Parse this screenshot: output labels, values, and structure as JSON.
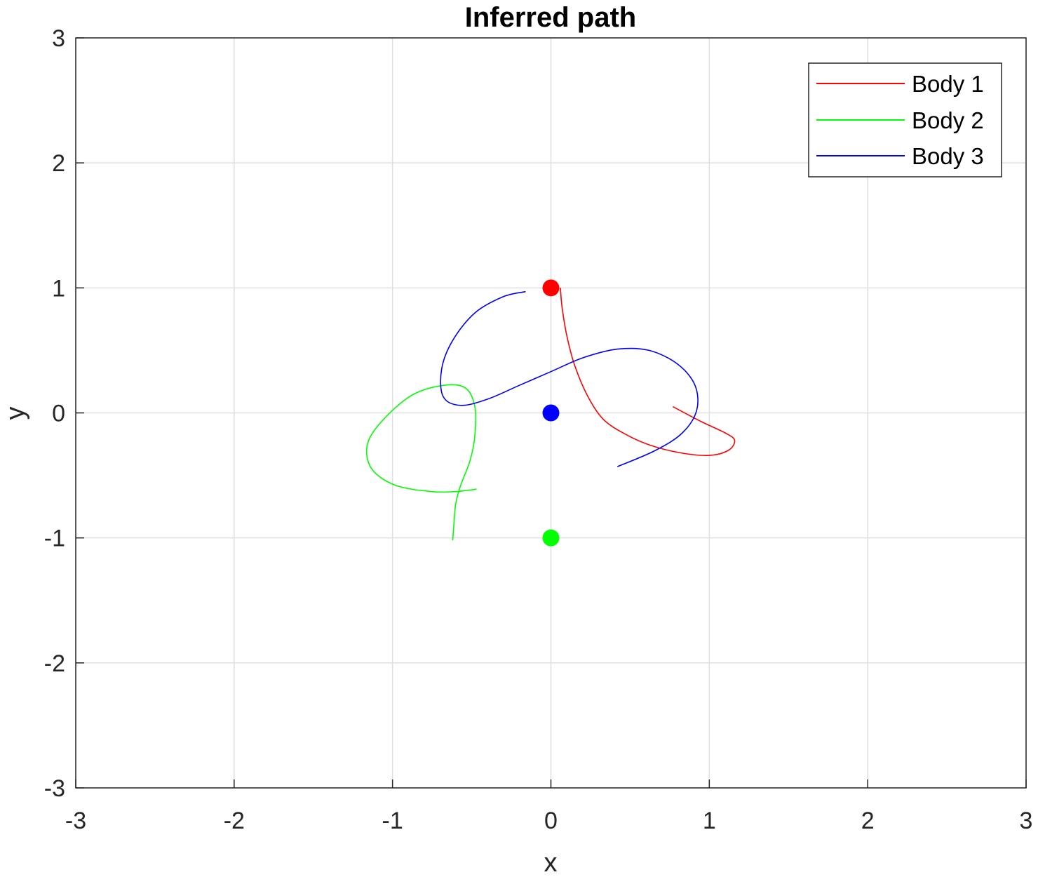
{
  "chart_data": {
    "type": "line",
    "title": "Inferred path",
    "xlabel": "x",
    "ylabel": "y",
    "xlim": [
      -3,
      3
    ],
    "ylim": [
      -3,
      3
    ],
    "xticks": [
      -3,
      -2,
      -1,
      0,
      1,
      2,
      3
    ],
    "yticks": [
      -3,
      -2,
      -1,
      0,
      1,
      2,
      3
    ],
    "grid": true,
    "legend_position": "top-right",
    "series": [
      {
        "name": "Body 1",
        "color": "#ff0000",
        "start": [
          0,
          1
        ],
        "x": [
          0.06,
          0.07,
          0.1,
          0.15,
          0.23,
          0.33,
          0.47,
          0.63,
          0.82,
          1.0,
          1.12,
          1.16,
          1.1,
          0.95,
          0.77
        ],
        "y": [
          1.0,
          0.85,
          0.62,
          0.38,
          0.14,
          -0.05,
          -0.17,
          -0.26,
          -0.32,
          -0.34,
          -0.3,
          -0.22,
          -0.16,
          -0.07,
          0.05
        ]
      },
      {
        "name": "Body 2",
        "color": "#00ff00",
        "start": [
          0,
          -1
        ],
        "x": [
          -0.62,
          -0.61,
          -0.6,
          -0.57,
          -0.51,
          -0.48,
          -0.48,
          -0.54,
          -0.68,
          -0.88,
          -1.07,
          -1.16,
          -1.13,
          -0.98,
          -0.75,
          -0.61,
          -0.53,
          -0.47
        ],
        "y": [
          -1.02,
          -0.85,
          -0.72,
          -0.58,
          -0.38,
          -0.18,
          0.05,
          0.2,
          0.22,
          0.14,
          -0.07,
          -0.26,
          -0.45,
          -0.58,
          -0.63,
          -0.63,
          -0.62,
          -0.61
        ]
      },
      {
        "name": "Body 3",
        "color": "#0000ff",
        "start": [
          0,
          0
        ],
        "x": [
          -0.16,
          -0.3,
          -0.48,
          -0.62,
          -0.69,
          -0.68,
          -0.57,
          -0.4,
          -0.2,
          0.0,
          0.2,
          0.42,
          0.62,
          0.8,
          0.91,
          0.92,
          0.83,
          0.66,
          0.42
        ],
        "y": [
          0.97,
          0.93,
          0.8,
          0.58,
          0.35,
          0.13,
          0.06,
          0.11,
          0.22,
          0.33,
          0.44,
          0.51,
          0.5,
          0.39,
          0.22,
          0.02,
          -0.16,
          -0.3,
          -0.43
        ]
      }
    ]
  }
}
